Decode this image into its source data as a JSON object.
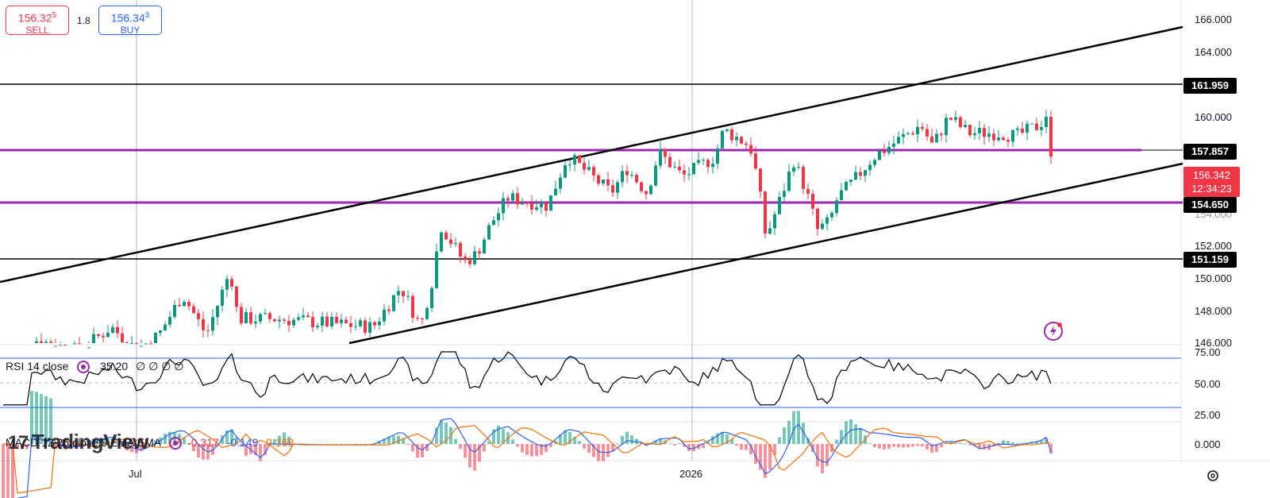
{
  "trade": {
    "sell_price_main": "156.32",
    "sell_price_sup": "5",
    "sell_label": "SELL",
    "spread": "1.8",
    "buy_price_main": "156.34",
    "buy_price_sup": "3",
    "buy_label": "BUY"
  },
  "price_axis": {
    "ticks": [
      "166.000",
      "164.000",
      "160.000",
      "152.000",
      "150.000",
      "148.000",
      "146.000"
    ],
    "levels": [
      "161.959",
      "157.857",
      "154.650",
      "151.159"
    ],
    "current_price": "156.342",
    "countdown": "12:34:23",
    "partial_tick": "154.000"
  },
  "rsi": {
    "title": "RSI 14 close",
    "value": "35.20",
    "empties": "∅ ∅ ∅ ∅",
    "ticks": [
      "75.00",
      "50.00",
      "25.00"
    ]
  },
  "macd": {
    "title": "MACD 12 26 close 9 EMA EMA",
    "hist": "-0.317",
    "macd": "-0.149",
    "signal": "0.168",
    "tick": "0.000",
    "hist_color": "#f23645",
    "macd_color": "#2962ff",
    "signal_color": "#ff6d00"
  },
  "time_axis": {
    "labels": [
      "Jul",
      "2026"
    ]
  },
  "branding": {
    "logo": "TradingView"
  },
  "colors": {
    "up": "#089981",
    "down": "#f23645",
    "support_resistance": "#9c27b0",
    "trendline": "#000000"
  },
  "icons": [
    "indicator-settings-icon",
    "chart-settings-icon",
    "flash-icon",
    "tradingview-logo-icon"
  ]
}
